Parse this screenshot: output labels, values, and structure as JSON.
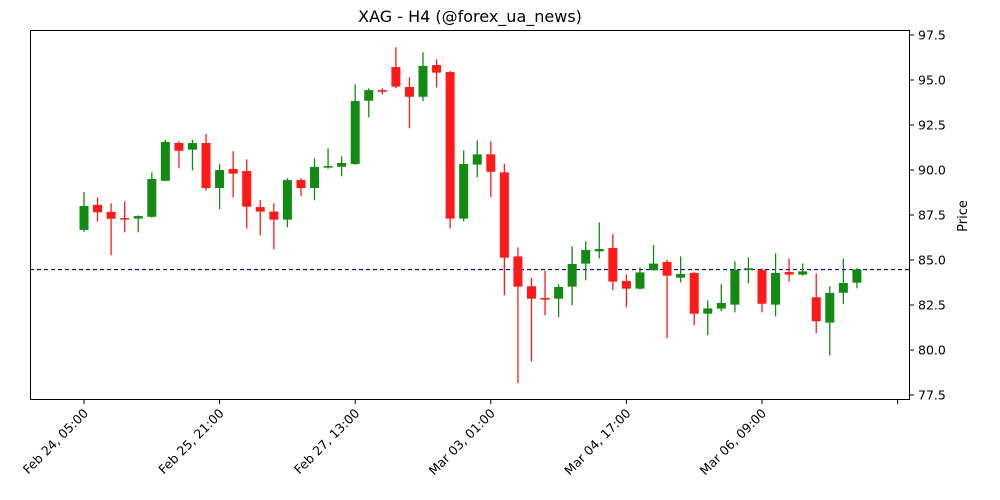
{
  "chart_data": {
    "type": "candlestick",
    "title": "XAG - H4 (@forex_ua_news)",
    "ylabel": "Price",
    "xlabel": "",
    "ylim": [
      77.0,
      97.8
    ],
    "y_ticks": [
      77.5,
      80.0,
      82.5,
      85.0,
      87.5,
      90.0,
      92.5,
      95.0,
      97.5
    ],
    "y_axis_side": "right",
    "x_tick_labels": [
      "Feb 24, 05:00",
      "Feb 25, 21:00",
      "Feb 27, 13:00",
      "Mar 03, 01:00",
      "Mar 04, 17:00",
      "Mar 06, 09:00",
      ""
    ],
    "x_tick_every": 10,
    "grid": false,
    "reference_line": {
      "value": 84.47,
      "style": "dashed",
      "color": "#00008b"
    },
    "colors": {
      "up": "#138a13",
      "down": "#ff1a1a"
    },
    "candles": [
      [
        86.67,
        88.78,
        86.56,
        88.0
      ],
      [
        88.06,
        88.48,
        87.13,
        87.65
      ],
      [
        87.67,
        88.15,
        85.26,
        87.29
      ],
      [
        87.33,
        88.26,
        86.54,
        87.3
      ],
      [
        87.3,
        87.48,
        86.54,
        87.44
      ],
      [
        87.4,
        89.87,
        87.35,
        89.5
      ],
      [
        89.4,
        91.67,
        89.4,
        91.56
      ],
      [
        91.5,
        91.6,
        90.1,
        91.07
      ],
      [
        91.13,
        91.67,
        89.98,
        91.5
      ],
      [
        91.5,
        92.0,
        88.85,
        89.0
      ],
      [
        89.0,
        90.32,
        87.82,
        90.0
      ],
      [
        90.06,
        91.04,
        88.48,
        89.8
      ],
      [
        89.94,
        90.59,
        86.76,
        87.96
      ],
      [
        87.94,
        88.33,
        86.37,
        87.69
      ],
      [
        87.69,
        88.15,
        85.6,
        87.24
      ],
      [
        87.24,
        89.54,
        86.82,
        89.44
      ],
      [
        89.44,
        89.54,
        88.54,
        89.0
      ],
      [
        89.0,
        90.65,
        88.32,
        90.17
      ],
      [
        90.13,
        91.2,
        90.07,
        90.22
      ],
      [
        90.18,
        90.76,
        89.65,
        90.39
      ],
      [
        90.33,
        94.76,
        90.3,
        93.83
      ],
      [
        93.85,
        94.54,
        92.93,
        94.44
      ],
      [
        94.44,
        94.54,
        94.2,
        94.35
      ],
      [
        95.72,
        96.82,
        94.54,
        94.63
      ],
      [
        94.61,
        95.15,
        92.32,
        94.07
      ],
      [
        94.07,
        96.54,
        93.83,
        95.78
      ],
      [
        95.83,
        96.15,
        94.59,
        95.41
      ],
      [
        95.44,
        95.5,
        86.76,
        87.3
      ],
      [
        87.3,
        91.09,
        87.15,
        90.33
      ],
      [
        90.3,
        91.65,
        89.6,
        90.87
      ],
      [
        90.87,
        91.6,
        88.5,
        89.9
      ],
      [
        89.87,
        90.35,
        83.04,
        85.13
      ],
      [
        85.2,
        85.7,
        78.15,
        83.52
      ],
      [
        83.54,
        84.02,
        79.37,
        82.85
      ],
      [
        82.89,
        84.41,
        81.93,
        82.8
      ],
      [
        82.85,
        83.65,
        81.82,
        83.5
      ],
      [
        83.52,
        85.76,
        82.48,
        84.78
      ],
      [
        84.8,
        86.04,
        83.87,
        85.56
      ],
      [
        85.48,
        87.09,
        85.09,
        85.61
      ],
      [
        85.67,
        86.44,
        83.32,
        83.8
      ],
      [
        83.83,
        84.2,
        82.37,
        83.41
      ],
      [
        83.41,
        84.59,
        83.35,
        84.31
      ],
      [
        84.43,
        85.83,
        84.43,
        84.8
      ],
      [
        84.89,
        85.02,
        80.65,
        84.13
      ],
      [
        84.02,
        85.2,
        83.76,
        84.22
      ],
      [
        84.28,
        84.35,
        81.37,
        82.02
      ],
      [
        82.02,
        82.76,
        80.82,
        82.31
      ],
      [
        82.3,
        83.65,
        82.15,
        82.61
      ],
      [
        82.52,
        84.93,
        82.09,
        84.46
      ],
      [
        84.46,
        85.15,
        83.7,
        84.54
      ],
      [
        84.44,
        84.54,
        82.09,
        82.57
      ],
      [
        82.52,
        85.37,
        81.87,
        84.28
      ],
      [
        84.33,
        85.07,
        83.8,
        84.19
      ],
      [
        84.19,
        84.81,
        84.13,
        84.37
      ],
      [
        82.93,
        84.26,
        80.93,
        81.6
      ],
      [
        81.52,
        83.54,
        79.7,
        83.17
      ],
      [
        83.18,
        85.07,
        82.56,
        83.72
      ],
      [
        83.74,
        84.54,
        83.43,
        84.48
      ]
    ],
    "candle_fields": [
      "open",
      "high",
      "low",
      "close"
    ]
  }
}
